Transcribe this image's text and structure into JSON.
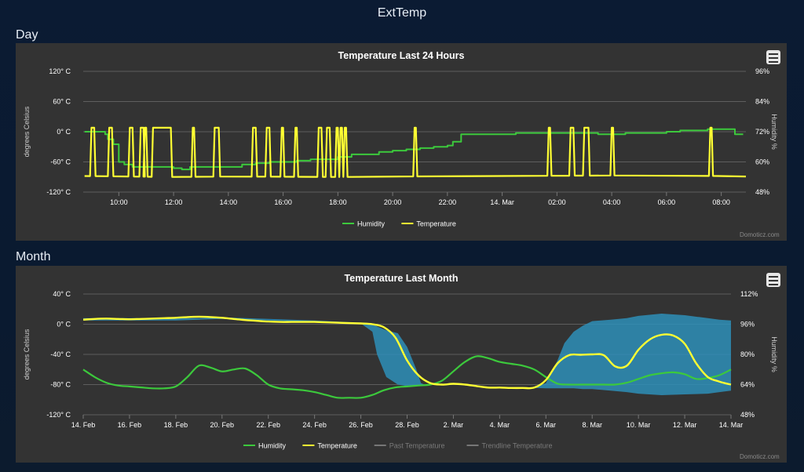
{
  "page": {
    "title": "ExtTemp",
    "section_day": "Day",
    "section_month": "Month"
  },
  "chart_data": [
    {
      "type": "line",
      "title": "Temperature Last 24 Hours",
      "ylabel": "degrees Celsius",
      "y2label": "Humidity %",
      "yticks": [
        "120° C",
        "60° C",
        "0° C",
        "-60° C",
        "-120° C"
      ],
      "ylim": [
        -120,
        120
      ],
      "y2ticks": [
        "96%",
        "84%",
        "72%",
        "60%",
        "48%"
      ],
      "y2lim": [
        48,
        96
      ],
      "xticks": [
        "10:00",
        "12:00",
        "14:00",
        "16:00",
        "18:00",
        "20:00",
        "22:00",
        "14. Mar",
        "02:00",
        "04:00",
        "06:00",
        "08:00"
      ],
      "xtick_hours": [
        10,
        12,
        14,
        16,
        18,
        20,
        22,
        24,
        26,
        28,
        30,
        32
      ],
      "xlim": [
        8.7,
        32.9
      ],
      "legend": [
        "Humidity",
        "Temperature"
      ],
      "series": [
        {
          "name": "Humidity",
          "axis": "y2",
          "color": "#3cc93c",
          "x": [
            8.75,
            9.2,
            9.5,
            9.6,
            9.8,
            10.0,
            10.2,
            10.5,
            10.8,
            11.0,
            11.5,
            12.0,
            12.3,
            12.6,
            13.0,
            13.5,
            14.0,
            14.5,
            15.0,
            15.5,
            16.0,
            16.5,
            17.0,
            17.5,
            18.0,
            18.5,
            19.0,
            19.5,
            20.0,
            20.5,
            21.0,
            21.5,
            22.0,
            22.2,
            22.5,
            23.0,
            23.5,
            24.0,
            24.5,
            25.0,
            25.5,
            26.0,
            26.5,
            27.0,
            27.5,
            28.0,
            28.5,
            29.0,
            29.5,
            30.0,
            30.5,
            31.0,
            31.5,
            32.0,
            32.3,
            32.5,
            32.8
          ],
          "y": [
            72,
            72,
            71,
            69,
            67,
            60,
            59,
            58,
            58,
            58,
            58,
            57.5,
            57,
            58,
            58,
            58,
            58,
            59,
            59.5,
            60,
            60,
            60.5,
            61,
            61,
            62,
            63,
            63,
            64,
            64.5,
            65,
            65.5,
            66,
            66.5,
            68,
            71,
            71,
            71,
            71,
            71.5,
            71.5,
            71.5,
            71.5,
            71.5,
            71.5,
            71,
            71,
            71.5,
            71.5,
            71.5,
            72,
            72.5,
            72.5,
            73,
            73,
            73,
            71,
            71
          ]
        },
        {
          "name": "Temperature",
          "axis": "y",
          "color": "#ffff33",
          "baseline_x": [
            8.75,
            12.0,
            14.0,
            18.0,
            20.0,
            24.0,
            28.0,
            32.0,
            32.9
          ],
          "baseline_y": [
            -88,
            -90,
            -89,
            -90,
            -89,
            -88,
            -87,
            -88,
            -89
          ],
          "spike_top": 8,
          "spikes": [
            [
              9.0,
              9.1
            ],
            [
              9.65,
              9.75
            ],
            [
              10.4,
              10.5
            ],
            [
              10.8,
              10.9
            ],
            [
              10.95,
              11.0
            ],
            [
              11.25,
              11.9
            ],
            [
              12.7,
              12.75
            ],
            [
              13.5,
              13.65
            ],
            [
              14.9,
              15.0
            ],
            [
              15.4,
              15.5
            ],
            [
              15.95,
              16.0
            ],
            [
              16.45,
              16.5
            ],
            [
              17.3,
              17.4
            ],
            [
              17.6,
              17.7
            ],
            [
              17.95,
              18.0
            ],
            [
              18.1,
              18.15
            ],
            [
              18.25,
              18.3
            ],
            [
              20.8,
              20.85
            ],
            [
              25.7,
              25.75
            ],
            [
              26.5,
              26.6
            ],
            [
              27.0,
              27.15
            ],
            [
              28.0,
              28.05
            ],
            [
              31.6,
              31.65
            ]
          ]
        }
      ]
    },
    {
      "type": "line",
      "title": "Temperature Last Month",
      "ylabel": "degrees Celsius",
      "y2label": "Humidity %",
      "yticks": [
        "40° C",
        "0° C",
        "-40° C",
        "-80° C",
        "-120° C"
      ],
      "ylim": [
        -120,
        40
      ],
      "y2ticks": [
        "112%",
        "96%",
        "80%",
        "64%",
        "48%"
      ],
      "y2lim": [
        48,
        112
      ],
      "xticks": [
        "14. Feb",
        "16. Feb",
        "18. Feb",
        "20. Feb",
        "22. Feb",
        "24. Feb",
        "26. Feb",
        "28. Feb",
        "2. Mar",
        "4. Mar",
        "6. Mar",
        "8. Mar",
        "10. Mar",
        "12. Mar",
        "14. Mar"
      ],
      "xtick_days": [
        0,
        2,
        4,
        6,
        8,
        10,
        12,
        14,
        16,
        18,
        20,
        22,
        24,
        26,
        28
      ],
      "xlim": [
        0,
        28
      ],
      "legend": [
        "Humidity",
        "Temperature",
        "Past Temperature",
        "Trendline Temperature"
      ],
      "series": [
        {
          "name": "Humidity",
          "axis": "y2",
          "color": "#3cc93c",
          "x": [
            0,
            0.5,
            1,
            1.5,
            2,
            2.5,
            3,
            3.5,
            4,
            4.5,
            5,
            5.5,
            6,
            6.5,
            7,
            7.5,
            8,
            8.5,
            9,
            9.5,
            10,
            10.5,
            11,
            11.5,
            12,
            12.5,
            13,
            13.5,
            14,
            14.5,
            15,
            15.5,
            16,
            16.5,
            17,
            17.5,
            18,
            18.5,
            19,
            19.5,
            20,
            20.5,
            21,
            21.5,
            22,
            22.5,
            23,
            23.5,
            24,
            24.5,
            25,
            25.5,
            26,
            26.5,
            27,
            27.5,
            28
          ],
          "y": [
            72,
            68,
            65,
            63.5,
            63,
            62.5,
            62,
            62,
            63,
            68,
            74,
            73,
            71,
            72,
            72.5,
            69,
            64,
            62,
            61.5,
            61,
            60,
            58.5,
            57,
            57,
            57,
            58.5,
            61,
            62.5,
            63,
            63.5,
            64,
            66,
            71,
            76,
            79,
            78,
            76,
            75,
            74,
            72,
            68,
            64.5,
            64,
            64,
            64,
            64,
            64,
            65,
            67,
            69,
            70,
            70.5,
            69.5,
            67,
            67.5,
            69,
            72
          ]
        },
        {
          "name": "Temperature",
          "axis": "y",
          "color": "#ffff33",
          "x": [
            0,
            0.5,
            1,
            1.5,
            2,
            2.5,
            3,
            3.5,
            4,
            4.5,
            5,
            5.5,
            6,
            6.5,
            7,
            7.5,
            8,
            8.5,
            9,
            9.5,
            10,
            10.5,
            11,
            11.5,
            12,
            12.5,
            13,
            13.5,
            14,
            14.5,
            15,
            15.5,
            16,
            16.5,
            17,
            17.5,
            18,
            18.5,
            19,
            19.5,
            20,
            20.5,
            21,
            21.5,
            22,
            22.5,
            23,
            23.5,
            24,
            24.5,
            25,
            25.5,
            26,
            26.5,
            27,
            27.5,
            28
          ],
          "y": [
            6,
            7,
            7.5,
            7,
            6.5,
            7,
            7.5,
            8,
            8.5,
            9.5,
            10,
            9.5,
            8.5,
            7,
            5.5,
            4.5,
            3.5,
            3,
            3,
            3,
            3,
            2.5,
            2,
            1.5,
            1,
            0,
            -4,
            -18,
            -48,
            -68,
            -78,
            -80,
            -79,
            -80,
            -82,
            -84,
            -84,
            -84.5,
            -84.5,
            -84,
            -74,
            -52,
            -41,
            -40.5,
            -40,
            -41,
            -56,
            -55,
            -34,
            -20,
            -14,
            -15,
            -26,
            -52,
            -70,
            -76,
            -80
          ]
        }
      ],
      "band": {
        "name": "Past Temperature",
        "color": "#2e8fb8",
        "x": [
          0,
          4,
          5,
          6,
          8,
          10,
          12,
          12.5,
          12.7,
          13.1,
          13.6,
          14.0,
          14.4,
          14.6,
          14.75,
          16,
          17,
          18,
          19,
          19.5,
          20,
          20.5,
          20.8,
          21.2,
          21.6,
          22.0,
          22.8,
          23.5,
          24,
          25,
          26,
          27,
          27.5,
          28
        ],
        "upper": [
          8,
          8,
          8,
          9,
          7,
          5,
          2,
          0,
          -3,
          -8,
          -12,
          -30,
          -60,
          -78,
          -80,
          -79,
          -82,
          -84,
          -84.5,
          -84,
          -78,
          -48,
          -25,
          -10,
          -2,
          4,
          6,
          8,
          11,
          14,
          12,
          8,
          6,
          5
        ],
        "lower": [
          5,
          5,
          6,
          7,
          5,
          3,
          1,
          -10,
          -40,
          -70,
          -80,
          -82,
          -82,
          -81,
          -80,
          -79,
          -82,
          -84,
          -84.5,
          -84.5,
          -85,
          -85,
          -85,
          -85,
          -86,
          -86,
          -88,
          -90,
          -92,
          -94,
          -93,
          -92,
          -90,
          -88
        ]
      }
    }
  ],
  "credits": "Domoticz.com"
}
